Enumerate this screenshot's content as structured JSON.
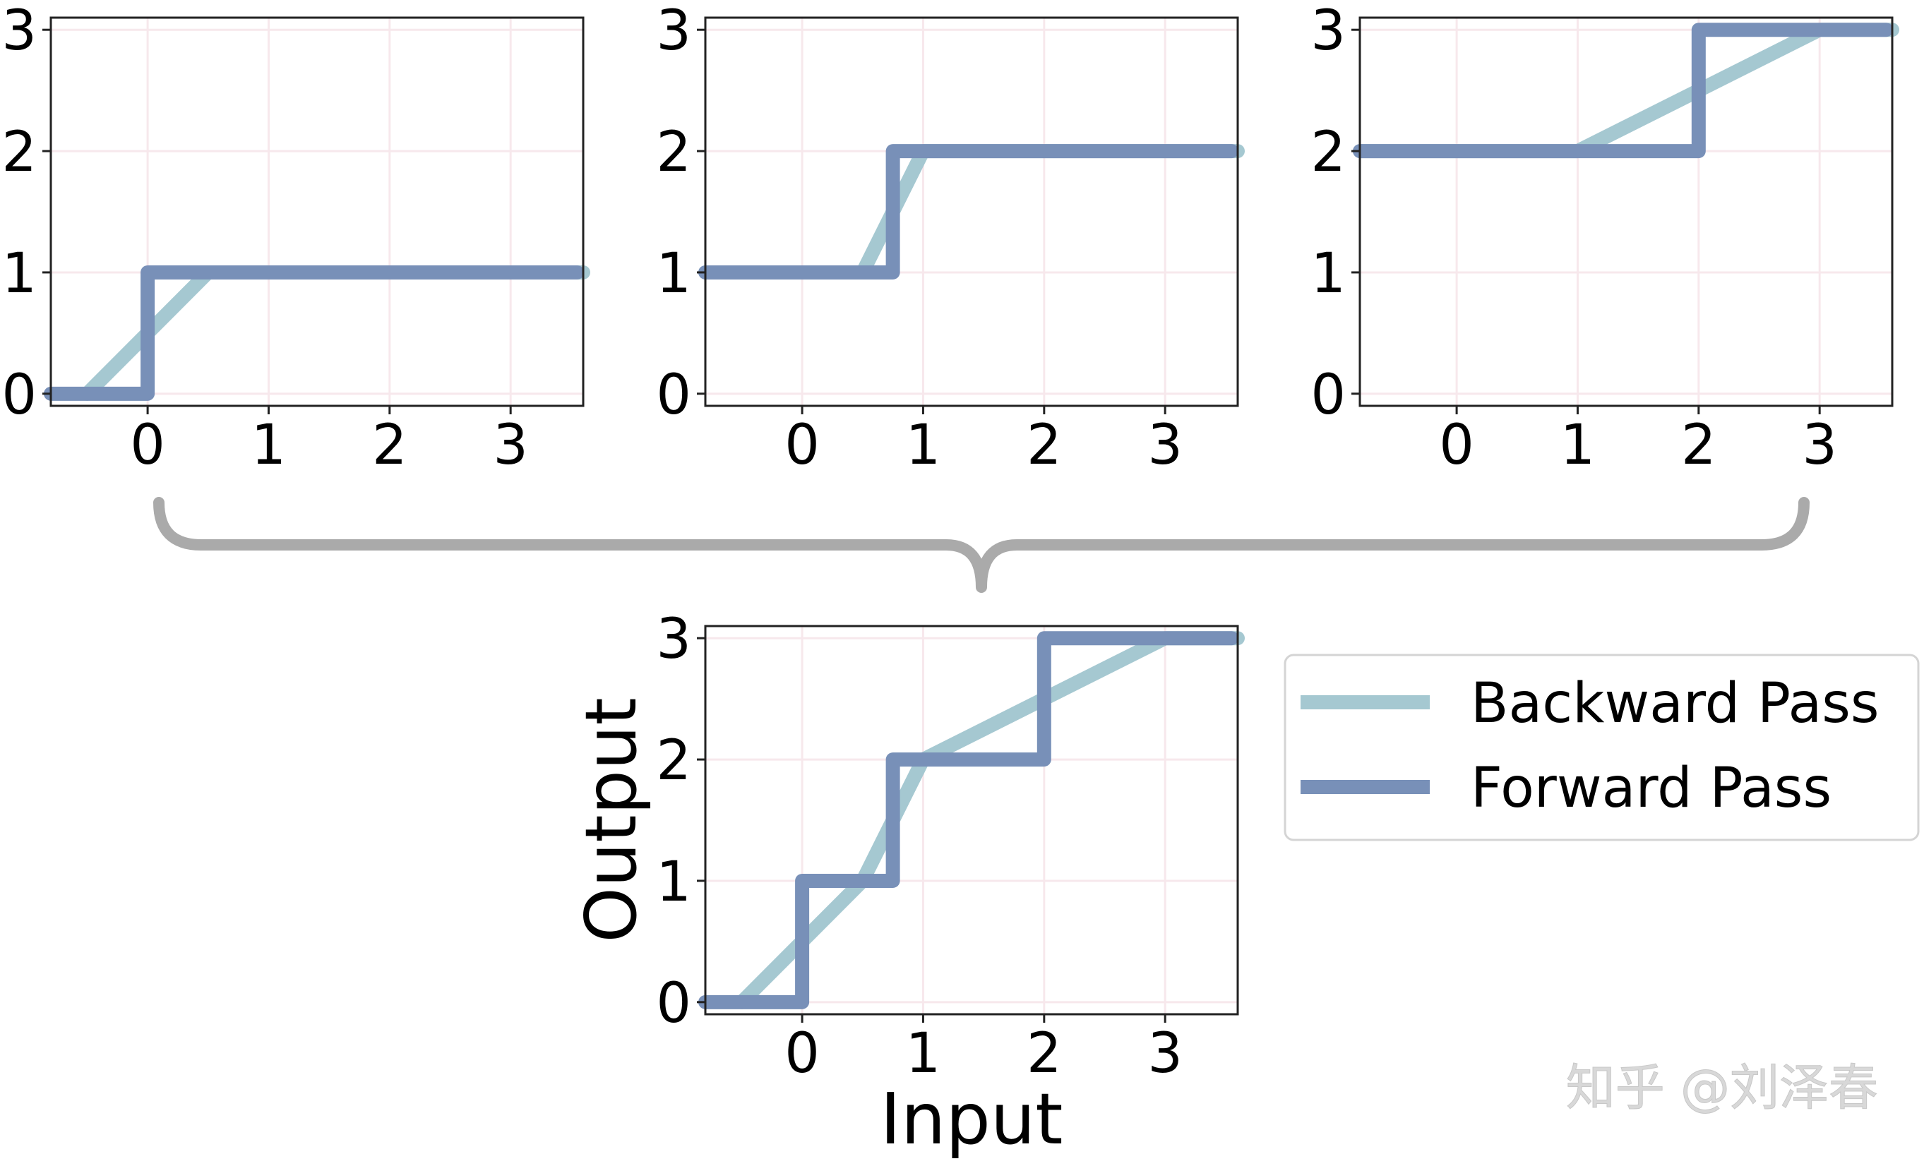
{
  "chart_data": [
    {
      "type": "line",
      "panel": "top-left",
      "xlim": [
        -0.8,
        3.6
      ],
      "ylim": [
        -0.1,
        3.1
      ],
      "xticks": [
        0,
        1,
        2,
        3
      ],
      "yticks": [
        0,
        1,
        2,
        3
      ],
      "xlabel": "",
      "ylabel": "",
      "grid": true,
      "series": [
        {
          "name": "Backward Pass",
          "x": [
            -0.5,
            0.5,
            3.6
          ],
          "y": [
            0,
            1,
            1
          ]
        },
        {
          "name": "Forward Pass",
          "x": [
            -0.8,
            0,
            0,
            3.55
          ],
          "y": [
            0,
            0,
            1,
            1
          ]
        }
      ]
    },
    {
      "type": "line",
      "panel": "top-middle",
      "xlim": [
        -0.8,
        3.6
      ],
      "ylim": [
        -0.1,
        3.1
      ],
      "xticks": [
        0,
        1,
        2,
        3
      ],
      "yticks": [
        0,
        1,
        2,
        3
      ],
      "xlabel": "",
      "ylabel": "",
      "grid": true,
      "series": [
        {
          "name": "Backward Pass",
          "x": [
            -0.8,
            0.5,
            1.0,
            3.6
          ],
          "y": [
            1,
            1,
            2,
            2
          ]
        },
        {
          "name": "Forward Pass",
          "x": [
            -0.8,
            0.75,
            0.75,
            3.55
          ],
          "y": [
            1,
            1,
            2,
            2
          ]
        }
      ]
    },
    {
      "type": "line",
      "panel": "top-right",
      "xlim": [
        -0.8,
        3.6
      ],
      "ylim": [
        -0.1,
        3.1
      ],
      "xticks": [
        0,
        1,
        2,
        3
      ],
      "yticks": [
        0,
        1,
        2,
        3
      ],
      "xlabel": "",
      "ylabel": "",
      "grid": true,
      "series": [
        {
          "name": "Backward Pass",
          "x": [
            -0.8,
            1.0,
            3.0,
            3.6
          ],
          "y": [
            2,
            2,
            3,
            3
          ]
        },
        {
          "name": "Forward Pass",
          "x": [
            -0.8,
            2.0,
            2.0,
            3.55
          ],
          "y": [
            2,
            2,
            3,
            3
          ]
        }
      ]
    },
    {
      "type": "line",
      "panel": "bottom",
      "xlim": [
        -0.8,
        3.6
      ],
      "ylim": [
        -0.1,
        3.1
      ],
      "xticks": [
        0,
        1,
        2,
        3
      ],
      "yticks": [
        0,
        1,
        2,
        3
      ],
      "xlabel": "Input",
      "ylabel": "Output",
      "grid": true,
      "series": [
        {
          "name": "Backward Pass",
          "x": [
            -0.5,
            0.5,
            1.0,
            3.0,
            3.6
          ],
          "y": [
            0,
            1,
            2,
            3,
            3
          ]
        },
        {
          "name": "Forward Pass",
          "x": [
            -0.8,
            0,
            0,
            0.75,
            0.75,
            2.0,
            2.0,
            3.55
          ],
          "y": [
            0,
            0,
            1,
            1,
            2,
            2,
            3,
            3
          ]
        }
      ]
    }
  ],
  "legend": {
    "placement": "right of bottom panel",
    "entries": [
      {
        "label": "Backward Pass",
        "color": "#a5c8d1"
      },
      {
        "label": "Forward Pass",
        "color": "#7890b8"
      }
    ]
  },
  "colors": {
    "backward": "#a5c8d1",
    "forward": "#7890b8",
    "brace": "#aaaaaa",
    "grid": "#f7e8ec",
    "axis": "#222222"
  },
  "watermark": "知乎 @刘泽春"
}
